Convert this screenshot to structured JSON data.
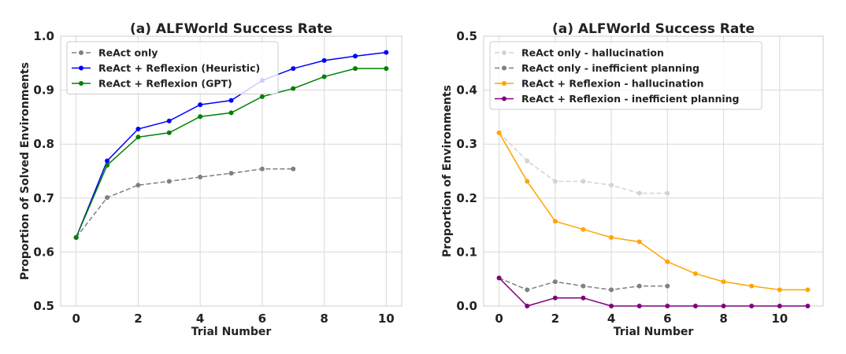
{
  "chart_data": [
    {
      "type": "line",
      "title": "(a) ALFWorld Success Rate",
      "xlabel": "Trial Number",
      "ylabel": "Proportion of Solved Environments",
      "xlim": [
        -0.5,
        10.5
      ],
      "ylim": [
        0.5,
        1.0
      ],
      "xticks": [
        0,
        2,
        4,
        6,
        8,
        10
      ],
      "yticks": [
        0.5,
        0.6,
        0.7,
        0.8,
        0.9,
        1.0
      ],
      "grid": true,
      "legend": "top-left",
      "series": [
        {
          "name": "ReAct only",
          "color": "#808080",
          "dashed": true,
          "x": [
            0,
            1,
            2,
            3,
            4,
            5,
            6,
            7
          ],
          "y": [
            0.627,
            0.701,
            0.724,
            0.731,
            0.739,
            0.746,
            0.754,
            0.754
          ]
        },
        {
          "name": "ReAct + Reflexion (Heuristic)",
          "color": "#0000ff",
          "dashed": false,
          "x": [
            0,
            1,
            2,
            3,
            4,
            5,
            6,
            7,
            8,
            9,
            10
          ],
          "y": [
            0.627,
            0.769,
            0.828,
            0.843,
            0.873,
            0.881,
            0.918,
            0.94,
            0.955,
            0.963,
            0.97
          ]
        },
        {
          "name": "ReAct + Reflexion (GPT)",
          "color": "#008000",
          "dashed": false,
          "x": [
            0,
            1,
            2,
            3,
            4,
            5,
            6,
            7,
            8,
            9,
            10
          ],
          "y": [
            0.627,
            0.761,
            0.813,
            0.821,
            0.851,
            0.858,
            0.888,
            0.903,
            0.925,
            0.94,
            0.94
          ]
        }
      ]
    },
    {
      "type": "line",
      "title": "(a) ALFWorld Success Rate",
      "xlabel": "Trial Number",
      "ylabel": "Proportion of Environments",
      "xlim": [
        -0.55,
        11.55
      ],
      "ylim": [
        0,
        0.5
      ],
      "xticks": [
        0,
        2,
        4,
        6,
        8,
        10
      ],
      "yticks": [
        0.0,
        0.1,
        0.2,
        0.3,
        0.4,
        0.5
      ],
      "grid": true,
      "legend": "top-left",
      "series": [
        {
          "name": "ReAct only - hallucination",
          "color": "#d3d3d3",
          "dashed": true,
          "x": [
            0,
            1,
            2,
            3,
            4,
            5,
            6
          ],
          "y": [
            0.321,
            0.269,
            0.231,
            0.231,
            0.224,
            0.209,
            0.209
          ]
        },
        {
          "name": "ReAct only - inefficient planning",
          "color": "#808080",
          "dashed": true,
          "x": [
            0,
            1,
            2,
            3,
            4,
            5,
            6
          ],
          "y": [
            0.052,
            0.03,
            0.045,
            0.037,
            0.03,
            0.037,
            0.037
          ]
        },
        {
          "name": "ReAct + Reflexion - hallucination",
          "color": "#ffa500",
          "dashed": false,
          "x": [
            0,
            1,
            2,
            3,
            4,
            5,
            6,
            7,
            8,
            9,
            10,
            11
          ],
          "y": [
            0.321,
            0.231,
            0.157,
            0.142,
            0.127,
            0.119,
            0.082,
            0.06,
            0.045,
            0.037,
            0.03,
            0.03
          ]
        },
        {
          "name": "ReAct + Reflexion - inefficient planning",
          "color": "#800080",
          "dashed": false,
          "x": [
            0,
            1,
            2,
            3,
            4,
            5,
            6,
            7,
            8,
            9,
            10,
            11
          ],
          "y": [
            0.052,
            0,
            0.015,
            0.015,
            0,
            0,
            0,
            0,
            0,
            0,
            0,
            0
          ]
        }
      ]
    }
  ]
}
